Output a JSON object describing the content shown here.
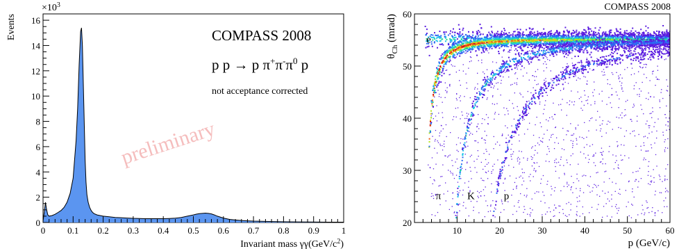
{
  "chart_data": [
    {
      "type": "area",
      "ylabel": "Events",
      "y_exponent_label": "×10",
      "y_exponent_sup": "3",
      "xlabel": "Invariant mass γγ(GeV/c",
      "xlabel_sup": "2",
      "xlabel_tail": ")",
      "xlim": [
        0,
        1
      ],
      "ylim": [
        0,
        16.5
      ],
      "x_ticks": [
        "0",
        "0.1",
        "0.2",
        "0.3",
        "0.4",
        "0.5",
        "0.6",
        "0.7",
        "0.8",
        "0.9",
        "1"
      ],
      "y_ticks": [
        "0",
        "2",
        "4",
        "6",
        "8",
        "10",
        "12",
        "14",
        "16"
      ],
      "fill_color": "#5b95f0",
      "annotations": {
        "experiment": "COMPASS 2008",
        "reaction_pre": "p p → p π",
        "reaction_sup1": "+",
        "reaction_mid1": "π",
        "reaction_sup2": "-",
        "reaction_mid2": "π",
        "reaction_sup3": "0",
        "reaction_post": " p",
        "note": "not acceptance corrected",
        "watermark": "preliminary"
      },
      "series": [
        {
          "x": [
            0.0,
            0.004,
            0.008,
            0.012,
            0.016,
            0.02,
            0.03,
            0.04,
            0.05,
            0.06,
            0.07,
            0.08,
            0.09,
            0.1,
            0.11,
            0.115,
            0.12,
            0.125,
            0.128,
            0.131,
            0.134,
            0.137,
            0.14,
            0.143,
            0.146,
            0.15,
            0.155,
            0.16,
            0.165,
            0.17,
            0.18,
            0.19,
            0.2,
            0.22,
            0.24,
            0.26,
            0.28,
            0.3,
            0.32,
            0.34,
            0.36,
            0.38,
            0.4,
            0.42,
            0.44,
            0.46,
            0.48,
            0.5,
            0.51,
            0.52,
            0.53,
            0.54,
            0.55,
            0.56,
            0.57,
            0.58,
            0.6,
            0.62,
            0.64,
            0.66,
            0.68,
            0.7,
            0.75,
            0.8,
            0.85,
            0.9,
            0.95,
            1.0
          ],
          "y": [
            0.1,
            0.8,
            1.6,
            1.0,
            0.6,
            0.5,
            0.55,
            0.65,
            0.8,
            0.95,
            1.2,
            1.6,
            2.3,
            3.5,
            6.5,
            9.0,
            12.5,
            15.1,
            15.4,
            14.0,
            11.0,
            8.0,
            5.0,
            3.2,
            2.2,
            1.6,
            1.2,
            0.95,
            0.8,
            0.7,
            0.6,
            0.55,
            0.5,
            0.45,
            0.4,
            0.38,
            0.35,
            0.33,
            0.32,
            0.3,
            0.3,
            0.3,
            0.3,
            0.32,
            0.34,
            0.4,
            0.5,
            0.6,
            0.66,
            0.7,
            0.72,
            0.74,
            0.72,
            0.68,
            0.6,
            0.5,
            0.35,
            0.25,
            0.2,
            0.16,
            0.13,
            0.11,
            0.08,
            0.06,
            0.05,
            0.04,
            0.03,
            0.03
          ]
        }
      ]
    },
    {
      "type": "heatmap",
      "title": "COMPASS 2008",
      "ylabel": "θ",
      "ylabel_sub": "Ch",
      "ylabel_tail": " (mrad)",
      "xlabel": "p (GeV/c)",
      "xlim": [
        0,
        60
      ],
      "ylim": [
        20,
        60
      ],
      "x_ticks": [
        "10",
        "20",
        "30",
        "40",
        "50",
        "60"
      ],
      "y_ticks": [
        "20",
        "30",
        "40",
        "50",
        "60"
      ],
      "colormap": [
        "#5a1ce0",
        "#2b6cf2",
        "#22c6e8",
        "#29d88b",
        "#b4e61e",
        "#f0c819",
        "#ef5a12",
        "#d80e16"
      ],
      "bands": [
        {
          "label": "e",
          "mass": 0.000511,
          "label_p": 2.8,
          "label_theta": 54.5
        },
        {
          "label": "π",
          "mass": 0.1396,
          "label_p": 5.0,
          "label_theta": 24.5
        },
        {
          "label": "K",
          "mass": 0.4937,
          "label_p": 12.4,
          "label_theta": 24.5
        },
        {
          "label": "p",
          "mass": 0.9383,
          "label_p": 21.0,
          "label_theta": 24.5
        }
      ]
    }
  ]
}
